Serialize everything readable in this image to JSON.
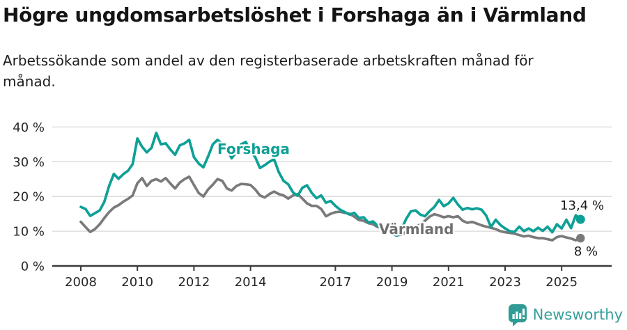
{
  "header": {
    "title": "Högre ungdomsarbetslöshet i Forshaga än i Värmland",
    "subtitle": "Arbetssökande som andel av den registerbaserade arbetskraften månad för månad.",
    "subtitle_lines": [
      "Arbetssökande som andel av den registerbaserade arbetskraften månad för",
      "månad."
    ]
  },
  "colors": {
    "forshaga": "#0da096",
    "varmland": "#7a7a7a",
    "varmland_label": "#6f6f6f",
    "grid": "#d8d8d8",
    "axis": "#3b3b3b",
    "tick_text": "#262626",
    "logo": "#35a09a"
  },
  "chart_data": {
    "type": "line",
    "title": "Högre ungdomsarbetslöshet i Forshaga än i Värmland",
    "subtitle": "Arbetssökande som andel av den registerbaserade arbetskraften månad för månad.",
    "unit": "%",
    "ylim": [
      0,
      40
    ],
    "grid": true,
    "x_range_years": [
      2008.0,
      2025.75
    ],
    "x_start_year": 2008.0,
    "points_per_year": 6,
    "y_ticks": [
      {
        "value": 40,
        "label": "40 %"
      },
      {
        "value": 30,
        "label": "30 %"
      },
      {
        "value": 20,
        "label": "20 %"
      },
      {
        "value": 10,
        "label": "10 %"
      },
      {
        "value": 0,
        "label": "0 %"
      }
    ],
    "x_ticks": [
      {
        "year": 2008,
        "label": "2008"
      },
      {
        "year": 2010,
        "label": "2010"
      },
      {
        "year": 2012,
        "label": "2012"
      },
      {
        "year": 2014,
        "label": "2014"
      },
      {
        "year": 2017,
        "label": "2017"
      },
      {
        "year": 2019,
        "label": "2019"
      },
      {
        "year": 2021,
        "label": "2021"
      },
      {
        "year": 2023,
        "label": "2023"
      },
      {
        "year": 2025,
        "label": "2025"
      }
    ],
    "series": [
      {
        "name": "Forshaga",
        "color": "#0da096",
        "end_value": 13.4,
        "end_label": "13,4 %",
        "values": [
          17.0,
          16.4,
          14.4,
          15.2,
          16.0,
          18.5,
          23.0,
          26.5,
          25.1,
          26.4,
          27.4,
          29.3,
          36.7,
          34.3,
          32.7,
          34.0,
          38.3,
          35.0,
          35.3,
          33.5,
          32.0,
          34.7,
          35.3,
          36.3,
          31.3,
          29.5,
          28.4,
          31.5,
          35.0,
          36.3,
          35.2,
          33.6,
          31.0,
          32.8,
          35.0,
          35.7,
          33.0,
          31.3,
          28.2,
          29.0,
          30.0,
          30.7,
          27.0,
          24.5,
          23.5,
          21.2,
          20.2,
          22.5,
          23.2,
          21.0,
          19.5,
          20.3,
          18.2,
          18.7,
          17.3,
          16.2,
          15.5,
          14.8,
          15.3,
          13.8,
          14.0,
          12.5,
          12.8,
          11.5,
          11.0,
          10.5,
          9.4,
          8.7,
          10.5,
          13.5,
          15.7,
          16.0,
          14.8,
          14.3,
          15.8,
          17.0,
          19.0,
          17.2,
          18.0,
          19.6,
          17.7,
          16.2,
          16.7,
          16.3,
          16.6,
          16.2,
          14.5,
          11.2,
          13.3,
          11.8,
          10.8,
          10.0,
          9.8,
          11.3,
          10.0,
          10.8,
          10.0,
          11.0,
          10.1,
          11.3,
          9.7,
          12.0,
          10.8,
          13.3,
          10.9,
          14.6,
          13.4
        ]
      },
      {
        "name": "Värmland",
        "color": "#7a7a7a",
        "end_value": 8.0,
        "end_label": "8 %",
        "values": [
          12.7,
          11.2,
          9.8,
          10.6,
          12.0,
          13.8,
          15.5,
          16.8,
          17.5,
          18.5,
          19.3,
          20.3,
          23.8,
          25.3,
          23.0,
          24.5,
          25.0,
          24.3,
          25.3,
          23.7,
          22.3,
          24.0,
          25.0,
          25.7,
          23.3,
          21.0,
          20.0,
          22.0,
          23.4,
          25.0,
          24.5,
          22.3,
          21.7,
          23.0,
          23.6,
          23.5,
          23.3,
          22.0,
          20.3,
          19.7,
          20.7,
          21.4,
          20.7,
          20.3,
          19.4,
          20.3,
          20.7,
          19.4,
          18.0,
          17.3,
          17.3,
          16.4,
          14.3,
          15.0,
          15.5,
          15.6,
          15.3,
          15.0,
          14.2,
          13.2,
          13.0,
          12.3,
          12.0,
          11.2,
          10.9,
          10.2,
          9.2,
          8.8,
          9.0,
          9.8,
          10.4,
          11.2,
          12.0,
          13.0,
          14.2,
          14.9,
          14.5,
          14.0,
          14.3,
          14.0,
          14.3,
          13.0,
          12.4,
          12.7,
          12.2,
          11.7,
          11.3,
          11.0,
          10.6,
          10.0,
          9.7,
          9.5,
          9.3,
          8.9,
          8.5,
          8.7,
          8.3,
          8.0,
          8.0,
          7.7,
          7.4,
          8.3,
          8.6,
          8.2,
          7.9,
          7.4,
          8.0
        ]
      }
    ],
    "legend_position": "inline-labels"
  },
  "footer": {
    "logo_text": "Newsworthy"
  }
}
